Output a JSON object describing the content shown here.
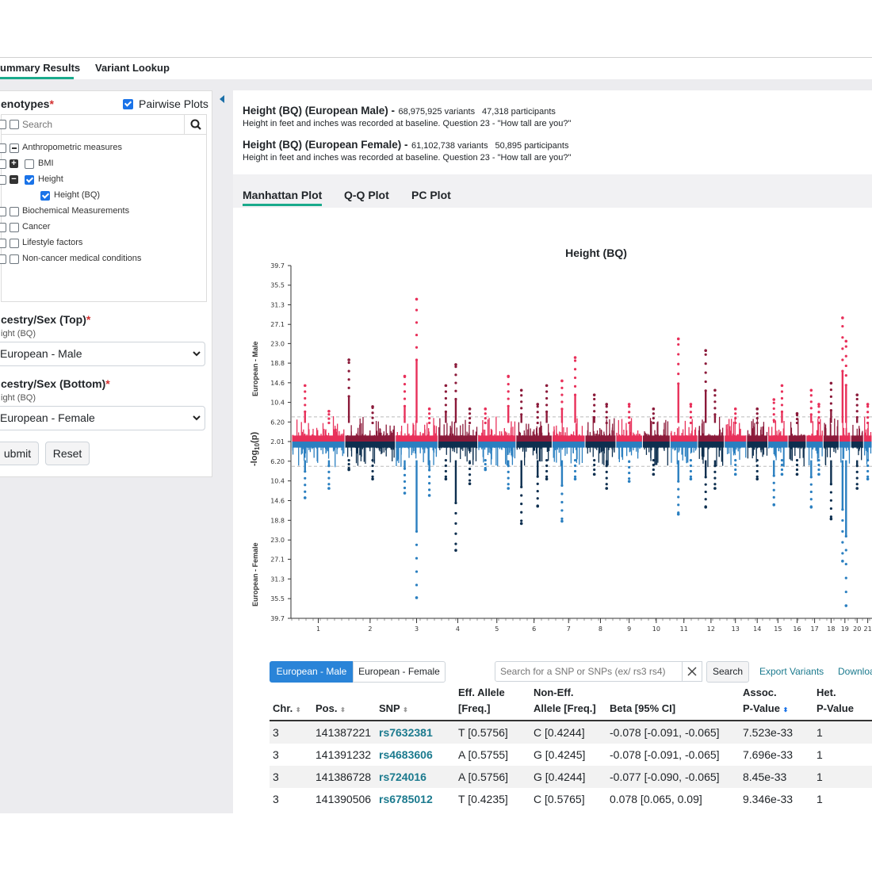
{
  "nav": {
    "tabs": [
      "ummary Results",
      "Variant Lookup"
    ]
  },
  "sidebar": {
    "phenotypes_label": "enotypes",
    "pairwise_label": "Pairwise Plots",
    "search_placeholder": "Search",
    "tree": [
      {
        "label": "Anthropometric measures"
      },
      {
        "label": "BMI"
      },
      {
        "label": "Height"
      },
      {
        "label": "Height (BQ)"
      },
      {
        "label": "Biochemical Measurements"
      },
      {
        "label": "Cancer"
      },
      {
        "label": "Lifestyle factors"
      },
      {
        "label": "Non-cancer medical conditions"
      }
    ],
    "top_label": "cestry/Sex (Top)",
    "top_sub": "ight (BQ)",
    "top_value": "European - Male",
    "bottom_label": "cestry/Sex (Bottom)",
    "bottom_sub": "ight (BQ)",
    "bottom_value": "European - Female",
    "submit_label": "ubmit",
    "reset_label": "Reset"
  },
  "info": {
    "male_title": "Height (BQ) (European Male) -",
    "male_variants": "68,975,925 variants",
    "male_participants": "47,318 participants",
    "male_desc": "Height in feet and inches was recorded at baseline. Question 23 - \"How tall are you?\"",
    "female_title": "Height (BQ) (European Female) -",
    "female_variants": "61,102,738 variants",
    "female_participants": "50,895 participants",
    "female_desc": "Height in feet and inches was recorded at baseline. Question 23 - \"How tall are you?\""
  },
  "plot_tabs": [
    "Manhattan Plot",
    "Q-Q Plot",
    "PC Plot"
  ],
  "chart_data": {
    "type": "scatter",
    "title": "Height (BQ)",
    "ylabel": "-log10(p)",
    "top_label": "European - Male",
    "bottom_label": "European - Female",
    "top_ticks": [
      "39.7",
      "35.5",
      "31.3",
      "27.1",
      "23.0",
      "18.8",
      "14.6",
      "10.4",
      "6.20",
      "2.01"
    ],
    "bottom_ticks": [
      "6.20",
      "10.4",
      "14.6",
      "18.8",
      "23.0",
      "27.1",
      "31.3",
      "35.5",
      "39.7"
    ],
    "x_ticks": [
      "1",
      "2",
      "3",
      "4",
      "5",
      "6",
      "7",
      "8",
      "9",
      "10",
      "11",
      "12",
      "13",
      "14",
      "15",
      "16",
      "17",
      "18",
      "19",
      "20",
      "21"
    ],
    "colors": {
      "top_light": "#e8305a",
      "top_dark": "#8b1a3a",
      "bottom_light": "#2a7fc0",
      "bottom_dark": "#0d2f4f"
    },
    "peaks": [
      {
        "chr": 1,
        "pos": 0.25,
        "top": 14.0,
        "bottom": 14.0
      },
      {
        "chr": 1,
        "pos": 0.7,
        "top": 8.5,
        "bottom": 12.0
      },
      {
        "chr": 2,
        "pos": 0.08,
        "top": 19.5,
        "bottom": 8.0
      },
      {
        "chr": 2,
        "pos": 0.55,
        "top": 9.5,
        "bottom": 10.0
      },
      {
        "chr": 3,
        "pos": 0.22,
        "top": 16.0,
        "bottom": 13.0
      },
      {
        "chr": 3,
        "pos": 0.5,
        "top": 32.5,
        "bottom": 35.3
      },
      {
        "chr": 3,
        "pos": 0.8,
        "top": 9.0,
        "bottom": 13.5
      },
      {
        "chr": 4,
        "pos": 0.2,
        "top": 14.0,
        "bottom": 10.0
      },
      {
        "chr": 4,
        "pos": 0.45,
        "top": 18.5,
        "bottom": 25.2
      },
      {
        "chr": 4,
        "pos": 0.8,
        "top": 9.0,
        "bottom": 11.0
      },
      {
        "chr": 5,
        "pos": 0.2,
        "top": 9.0,
        "bottom": 8.0
      },
      {
        "chr": 5,
        "pos": 0.8,
        "top": 16.0,
        "bottom": 12.0
      },
      {
        "chr": 6,
        "pos": 0.15,
        "top": 13.0,
        "bottom": 19.5
      },
      {
        "chr": 6,
        "pos": 0.6,
        "top": 10.0,
        "bottom": 15.8
      },
      {
        "chr": 6,
        "pos": 0.85,
        "top": 14.0,
        "bottom": 10.0
      },
      {
        "chr": 7,
        "pos": 0.3,
        "top": 15.0,
        "bottom": 19.0
      },
      {
        "chr": 7,
        "pos": 0.7,
        "top": 20.0,
        "bottom": 10.0
      },
      {
        "chr": 8,
        "pos": 0.3,
        "top": 12.0,
        "bottom": 9.0
      },
      {
        "chr": 8,
        "pos": 0.7,
        "top": 10.0,
        "bottom": 12.0
      },
      {
        "chr": 9,
        "pos": 0.5,
        "top": 10.0,
        "bottom": 10.5
      },
      {
        "chr": 10,
        "pos": 0.4,
        "top": 9.0,
        "bottom": 9.0
      },
      {
        "chr": 11,
        "pos": 0.3,
        "top": 24.0,
        "bottom": 17.5
      },
      {
        "chr": 11,
        "pos": 0.75,
        "top": 10.0,
        "bottom": 10.0
      },
      {
        "chr": 12,
        "pos": 0.3,
        "top": 21.5,
        "bottom": 16.0
      },
      {
        "chr": 12,
        "pos": 0.65,
        "top": 13.0,
        "bottom": 12.0
      },
      {
        "chr": 13,
        "pos": 0.5,
        "top": 9.0,
        "bottom": 9.0
      },
      {
        "chr": 14,
        "pos": 0.5,
        "top": 9.0,
        "bottom": 10.0
      },
      {
        "chr": 15,
        "pos": 0.3,
        "top": 11.0,
        "bottom": 15.5
      },
      {
        "chr": 15,
        "pos": 0.7,
        "top": 14.0,
        "bottom": 9.0
      },
      {
        "chr": 16,
        "pos": 0.5,
        "top": 8.0,
        "bottom": 9.0
      },
      {
        "chr": 17,
        "pos": 0.3,
        "top": 13.0,
        "bottom": 16.0
      },
      {
        "chr": 17,
        "pos": 0.75,
        "top": 10.0,
        "bottom": 9.0
      },
      {
        "chr": 18,
        "pos": 0.5,
        "top": 14.5,
        "bottom": 18.5
      },
      {
        "chr": 19,
        "pos": 0.3,
        "top": 28.5,
        "bottom": 27.5
      },
      {
        "chr": 19,
        "pos": 0.6,
        "top": 23.5,
        "bottom": 37.0
      },
      {
        "chr": 20,
        "pos": 0.5,
        "top": 12.0,
        "bottom": 12.0
      },
      {
        "chr": 21,
        "pos": 0.5,
        "top": 10.0,
        "bottom": 10.0
      }
    ]
  },
  "table_controls": {
    "toggle_male": "European - Male",
    "toggle_female": "European - Female",
    "search_placeholder": "Search for a SNP or SNPs (ex/ rs3 rs4)",
    "search_button": "Search",
    "export_label": "Export Variants",
    "download_label": "Downloa"
  },
  "table": {
    "headers": {
      "chr": "Chr.",
      "pos": "Pos.",
      "snp": "SNP",
      "eff_1": "Eff. Allele",
      "eff_2": "[Freq.]",
      "noneff_1": "Non-Eff.",
      "noneff_2": "Allele [Freq.]",
      "beta": "Beta [95% CI]",
      "assoc_1": "Assoc.",
      "assoc_2": "P-Value",
      "het_1": "Het.",
      "het_2": "P-Value"
    },
    "rows": [
      {
        "chr": "3",
        "pos": "141387221",
        "snp": "rs7632381",
        "eff": "T [0.5756]",
        "noneff": "C [0.4244]",
        "beta": "-0.078 [-0.091, -0.065]",
        "p": "7.523e-33",
        "het": "1"
      },
      {
        "chr": "3",
        "pos": "141391232",
        "snp": "rs4683606",
        "eff": "A [0.5755]",
        "noneff": "G [0.4245]",
        "beta": "-0.078 [-0.091, -0.065]",
        "p": "7.696e-33",
        "het": "1"
      },
      {
        "chr": "3",
        "pos": "141386728",
        "snp": "rs724016",
        "eff": "A [0.5756]",
        "noneff": "G [0.4244]",
        "beta": "-0.077 [-0.090, -0.065]",
        "p": "8.45e-33",
        "het": "1"
      },
      {
        "chr": "3",
        "pos": "141390506",
        "snp": "rs6785012",
        "eff": "T [0.4235]",
        "noneff": "C [0.5765]",
        "beta": "0.078 [0.065, 0.09]",
        "p": "9.346e-33",
        "het": "1"
      }
    ]
  }
}
